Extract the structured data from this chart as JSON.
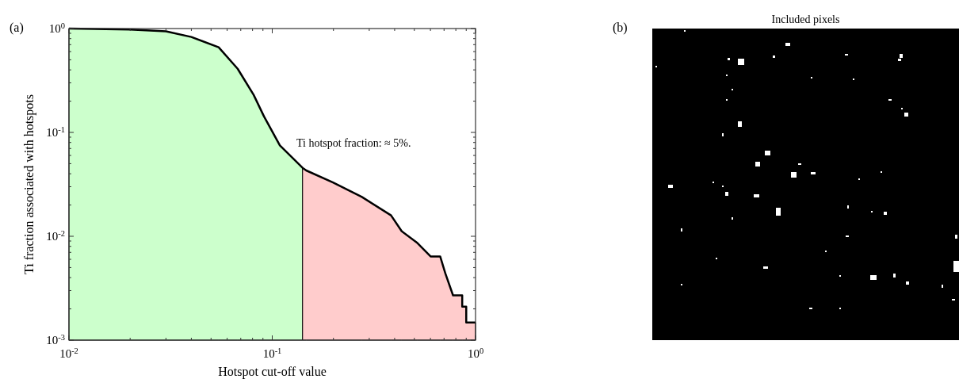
{
  "chart_data": [
    {
      "type": "line",
      "xlabel": "Hotspot cut-off value",
      "ylabel": "Ti fraction associated with hotspots",
      "annotations": [
        "(a)",
        "Ti hotspot fraction: ≈ 5%."
      ],
      "log": "xy",
      "xlim": [
        0.01,
        1
      ],
      "ylim": [
        0.001,
        1
      ],
      "xticks": [
        {
          "value": 0.01,
          "label": "10$^{-2}$"
        },
        {
          "value": 0.02,
          "label": null
        },
        {
          "value": 0.03,
          "label": null
        },
        {
          "value": 0.04,
          "label": null
        },
        {
          "value": 0.05,
          "label": null
        },
        {
          "value": 0.06,
          "label": null
        },
        {
          "value": 0.07,
          "label": null
        },
        {
          "value": 0.08,
          "label": null
        },
        {
          "value": 0.09,
          "label": null
        },
        {
          "value": 0.1,
          "label": "10$^{-1}$"
        },
        {
          "value": 0.2,
          "label": null
        },
        {
          "value": 0.3,
          "label": null
        },
        {
          "value": 0.4,
          "label": null
        },
        {
          "value": 0.5,
          "label": null
        },
        {
          "value": 0.6,
          "label": null
        },
        {
          "value": 0.7,
          "label": null
        },
        {
          "value": 0.8,
          "label": null
        },
        {
          "value": 0.9,
          "label": null
        },
        {
          "value": 1,
          "label": "10$^{0}$"
        }
      ],
      "yticks": [
        {
          "value": 0.001,
          "label": "10$^{-3}$"
        },
        {
          "value": 0.002,
          "label": null
        },
        {
          "value": 0.003,
          "label": null
        },
        {
          "value": 0.004,
          "label": null
        },
        {
          "value": 0.005,
          "label": null
        },
        {
          "value": 0.006,
          "label": null
        },
        {
          "value": 0.007,
          "label": null
        },
        {
          "value": 0.008,
          "label": null
        },
        {
          "value": 0.009,
          "label": null
        },
        {
          "value": 0.01,
          "label": "10$^{-2}$"
        },
        {
          "value": 0.02,
          "label": null
        },
        {
          "value": 0.03,
          "label": null
        },
        {
          "value": 0.04,
          "label": null
        },
        {
          "value": 0.05,
          "label": null
        },
        {
          "value": 0.06,
          "label": null
        },
        {
          "value": 0.07,
          "label": null
        },
        {
          "value": 0.08,
          "label": null
        },
        {
          "value": 0.09,
          "label": null
        },
        {
          "value": 0.1,
          "label": "10$^{-1}$"
        },
        {
          "value": 0.2,
          "label": null
        },
        {
          "value": 0.3,
          "label": null
        },
        {
          "value": 0.4,
          "label": null
        },
        {
          "value": 0.5,
          "label": null
        },
        {
          "value": 0.6,
          "label": null
        },
        {
          "value": 0.7,
          "label": null
        },
        {
          "value": 0.8,
          "label": null
        },
        {
          "value": 0.9,
          "label": null
        },
        {
          "value": 1,
          "label": "10$^{0}$"
        }
      ],
      "series": [
        {
          "type": "area",
          "color": "#ccffcc",
          "x": [
            0.01,
            0.02,
            0.03,
            0.04,
            0.0545,
            0.0676,
            0.081,
            0.091,
            0.109,
            0.141
          ],
          "values": [
            1.0,
            0.98,
            0.94,
            0.83,
            0.66,
            0.41,
            0.23,
            0.143,
            0.075,
            0.0456
          ]
        },
        {
          "type": "area",
          "color": "#ffcccc",
          "x": [
            0.141,
            0.147,
            0.199,
            0.276,
            0.384,
            0.433,
            0.518,
            0.601,
            0.67,
            0.71,
            0.775,
            0.86,
            0.86,
            0.9,
            0.9,
            1.0
          ],
          "values": [
            0.0456,
            0.043,
            0.033,
            0.0239,
            0.0159,
            0.0112,
            0.0086,
            0.0064,
            0.0064,
            0.0044,
            0.0027,
            0.0027,
            0.0021,
            0.0021,
            0.00148,
            0.00148
          ]
        },
        {
          "type": "line",
          "color": "#000000",
          "x": [
            0.01,
            0.02,
            0.03,
            0.04,
            0.0545,
            0.0676,
            0.081,
            0.091,
            0.109,
            0.141,
            0.147,
            0.199,
            0.276,
            0.384,
            0.433,
            0.518,
            0.601,
            0.67,
            0.71,
            0.775,
            0.86,
            0.86,
            0.9,
            0.9,
            1.0
          ],
          "values": [
            1.0,
            0.98,
            0.94,
            0.83,
            0.66,
            0.41,
            0.23,
            0.143,
            0.075,
            0.0456,
            0.043,
            0.033,
            0.0239,
            0.0159,
            0.0112,
            0.0086,
            0.0064,
            0.0064,
            0.0044,
            0.0027,
            0.0027,
            0.0021,
            0.0021,
            0.00148,
            0.00148
          ]
        }
      ]
    },
    {
      "type": "other",
      "title": "Included pixels",
      "annotations": [
        "(b)"
      ]
    }
  ]
}
